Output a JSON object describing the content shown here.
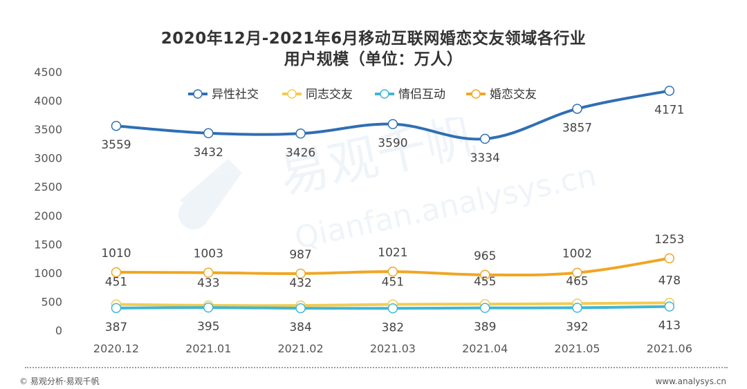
{
  "title_line1": "2020年12月-2021年6月移动互联网婚恋交友领域各行业",
  "title_line2": "用户规模（单位：万人）",
  "footer": {
    "source": "© 易观分析·易观千帆",
    "website": "www.analysys.cn"
  },
  "watermark": {
    "cn": "易观千帆",
    "en": "Qianfan.analysys.cn"
  },
  "colors": {
    "异性社交": "#2f6fb3",
    "同志交友": "#f2cc4f",
    "情侣互动": "#3fb6d6",
    "婚恋交友": "#f0a623",
    "axis_text": "#555555",
    "label_text": "#444444"
  },
  "chart_data": {
    "type": "line",
    "title": "2020年12月-2021年6月移动互联网婚恋交友领域各行业 用户规模（单位：万人）",
    "categories": [
      "2020.12",
      "2021.01",
      "2021.02",
      "2021.03",
      "2021.04",
      "2021.05",
      "2021.06"
    ],
    "ylim": [
      0,
      4500
    ],
    "yticks": [
      0,
      500,
      1000,
      1500,
      2000,
      2500,
      3000,
      3500,
      4000,
      4500
    ],
    "grid": false,
    "legend": "top-center",
    "series": [
      {
        "name": "异性社交",
        "values": [
          3559,
          3432,
          3426,
          3590,
          3334,
          3857,
          4171
        ]
      },
      {
        "name": "同志交友",
        "values": [
          451,
          433,
          432,
          451,
          455,
          465,
          478
        ]
      },
      {
        "name": "情侣互动",
        "values": [
          387,
          395,
          384,
          382,
          389,
          392,
          413
        ]
      },
      {
        "name": "婚恋交友",
        "values": [
          1010,
          1003,
          987,
          1021,
          965,
          1002,
          1253
        ]
      }
    ]
  }
}
